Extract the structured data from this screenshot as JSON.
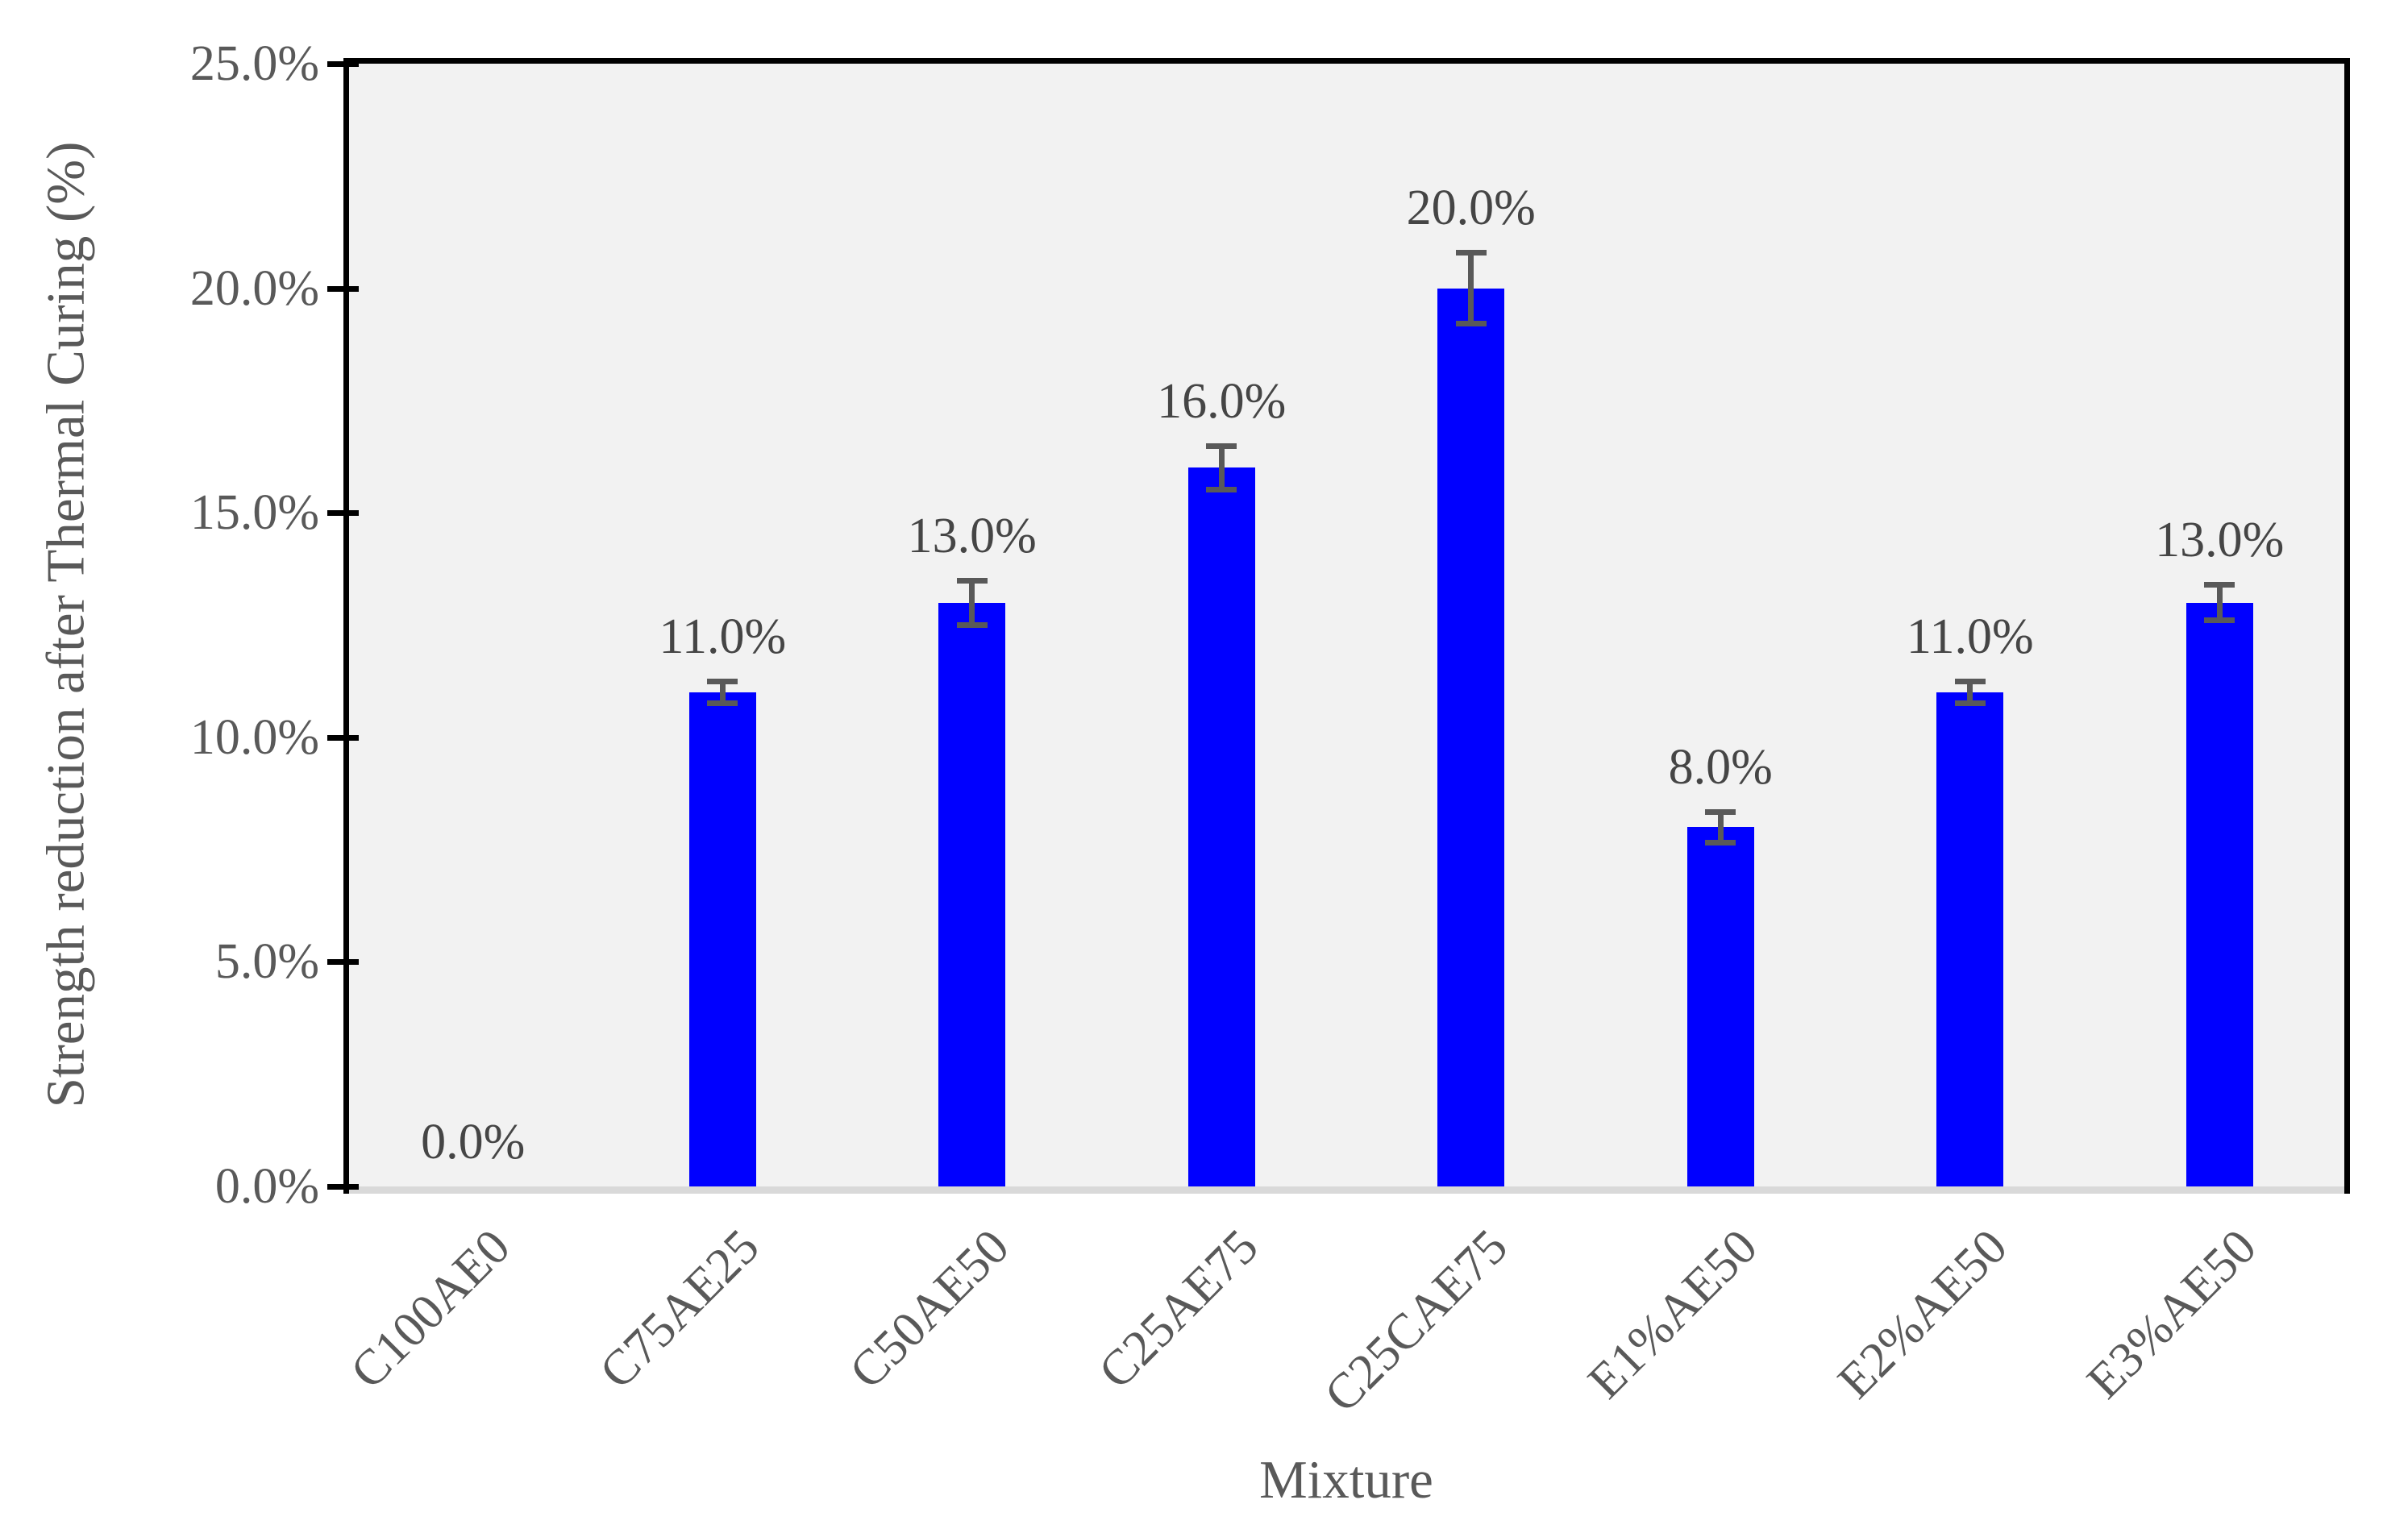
{
  "chart_data": {
    "type": "bar",
    "title": "",
    "xlabel": "Mixture",
    "ylabel": "Strength reduction after Thermal Curing (%)",
    "categories": [
      "C100AE0",
      "C75AE25",
      "C50AE50",
      "C25AE75",
      "C25CAE75",
      "E1%AE50",
      "E2%AE50",
      "E3%AE50"
    ],
    "values": [
      0.0,
      11.0,
      13.0,
      16.0,
      20.0,
      8.0,
      11.0,
      13.0
    ],
    "value_labels": [
      "0.0%",
      "11.0%",
      "13.0%",
      "16.0%",
      "20.0%",
      "8.0%",
      "11.0%",
      "13.0%"
    ],
    "error_bars": [
      0,
      0.25,
      0.5,
      0.5,
      0.8,
      0.35,
      0.25,
      0.4
    ],
    "ylim": [
      0,
      25
    ],
    "ytick_step": 5,
    "ytick_labels": [
      "0.0%",
      "5.0%",
      "10.0%",
      "15.0%",
      "20.0%",
      "25.0%"
    ],
    "legend": "none",
    "grid": "off",
    "colors": {
      "bar": "#0000FF",
      "error_bar": "#595959",
      "plot_background": "#F2F2F2",
      "axis_line": "#000000",
      "category_axis_line": "#D9D9D9",
      "tick_label_text": "#595959",
      "data_label_text": "#454545"
    }
  }
}
